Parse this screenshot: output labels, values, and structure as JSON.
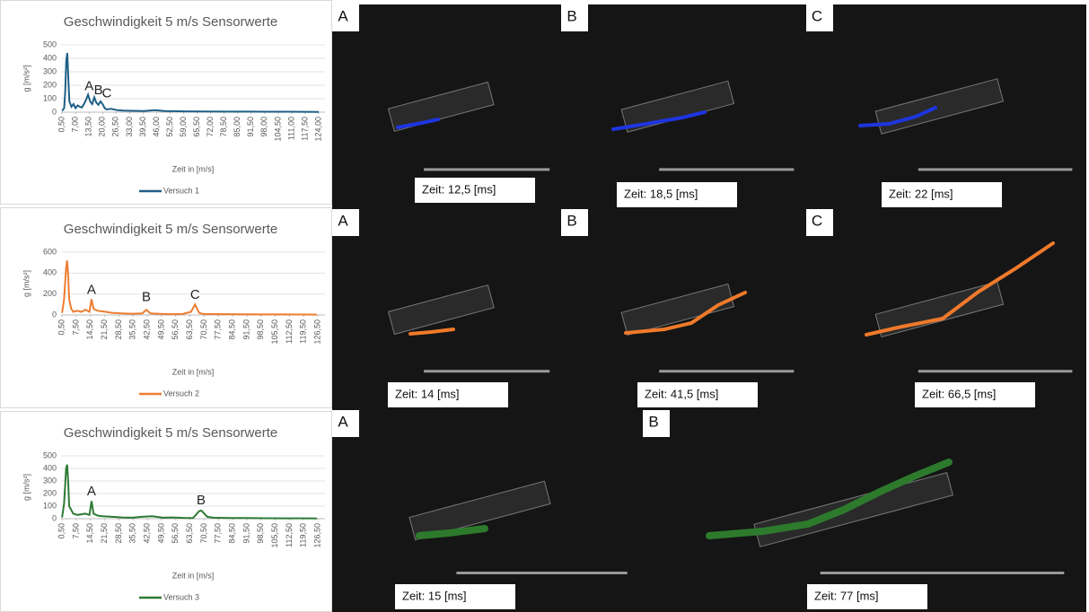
{
  "chart_data": [
    {
      "type": "line",
      "title": "Geschwindigkeit 5 m/s Sensorwerte",
      "x_label": "Zeit in [m/s]",
      "y_label": "g [m/s²]",
      "x": [
        0.5,
        1.5,
        2,
        2.5,
        3,
        3.5,
        4,
        5,
        6,
        7,
        8,
        9,
        10,
        11,
        12,
        13,
        14,
        15,
        16,
        17,
        18,
        19,
        20,
        21,
        22,
        24,
        27,
        30,
        35,
        40,
        45,
        50,
        60,
        70,
        80,
        90,
        100,
        110,
        124
      ],
      "series": [
        {
          "name": "Versuch 1",
          "color": "#1f5f86",
          "values": [
            10,
            30,
            150,
            380,
            440,
            250,
            80,
            40,
            60,
            30,
            50,
            40,
            35,
            60,
            90,
            130,
            80,
            60,
            110,
            70,
            55,
            80,
            60,
            30,
            20,
            25,
            15,
            12,
            10,
            8,
            15,
            8,
            6,
            5,
            4,
            4,
            3,
            3,
            2
          ]
        }
      ],
      "xlim": [
        0,
        127
      ],
      "xticks": [
        {
          "value": 0.5,
          "label": "0,50"
        },
        {
          "value": 7,
          "label": "7,00"
        },
        {
          "value": 13.5,
          "label": "13,50"
        },
        {
          "value": 20,
          "label": "20,00"
        },
        {
          "value": 26.5,
          "label": "26,50"
        },
        {
          "value": 33,
          "label": "33,00"
        },
        {
          "value": 39.5,
          "label": "39,50"
        },
        {
          "value": 46,
          "label": "46,00"
        },
        {
          "value": 52.5,
          "label": "52,50"
        },
        {
          "value": 59,
          "label": "59,00"
        },
        {
          "value": 65.5,
          "label": "65,50"
        },
        {
          "value": 72,
          "label": "72,00"
        },
        {
          "value": 78.5,
          "label": "78,50"
        },
        {
          "value": 85,
          "label": "85,00"
        },
        {
          "value": 91.5,
          "label": "91,50"
        },
        {
          "value": 98,
          "label": "98,00"
        },
        {
          "value": 104.5,
          "label": "104,50"
        },
        {
          "value": 111,
          "label": "111,00"
        },
        {
          "value": 117.5,
          "label": "117,50"
        },
        {
          "value": 124,
          "label": "124,00"
        }
      ],
      "ylim": [
        0,
        500
      ],
      "yticks": [
        0,
        100,
        200,
        300,
        400,
        500
      ],
      "grid": true,
      "annotations": [
        {
          "text": "A",
          "x": 13.5,
          "y": 130
        },
        {
          "text": "B",
          "x": 18,
          "y": 100
        },
        {
          "text": "C",
          "x": 22,
          "y": 75
        }
      ]
    },
    {
      "type": "line",
      "title": "Geschwindigkeit 5 m/s Sensorwerte",
      "x_label": "Zeit in [m/s]",
      "y_label": "g [m/s²]",
      "x": [
        0.5,
        1.5,
        2.5,
        3,
        3.5,
        4,
        5,
        6,
        8,
        10,
        12,
        14,
        15,
        16,
        18,
        20,
        22,
        25,
        30,
        35,
        40,
        42,
        44,
        50,
        55,
        60,
        64,
        66,
        68,
        70,
        80,
        90,
        100,
        110,
        120,
        126
      ],
      "series": [
        {
          "name": "Versuch 2",
          "color": "#ed7d31",
          "values": [
            20,
            150,
            450,
            520,
            380,
            150,
            60,
            30,
            40,
            30,
            50,
            30,
            150,
            60,
            40,
            35,
            30,
            20,
            15,
            12,
            15,
            50,
            15,
            10,
            8,
            10,
            30,
            100,
            20,
            10,
            8,
            6,
            5,
            5,
            4,
            3
          ]
        }
      ],
      "xlim": [
        0,
        130
      ],
      "xticks": [
        {
          "value": 0.5,
          "label": "0,50"
        },
        {
          "value": 7.5,
          "label": "7,50"
        },
        {
          "value": 14.5,
          "label": "14,50"
        },
        {
          "value": 21.5,
          "label": "21,50"
        },
        {
          "value": 28.5,
          "label": "28,50"
        },
        {
          "value": 35.5,
          "label": "35,50"
        },
        {
          "value": 42.5,
          "label": "42,50"
        },
        {
          "value": 49.5,
          "label": "49,50"
        },
        {
          "value": 56.5,
          "label": "56,50"
        },
        {
          "value": 63.5,
          "label": "63,50"
        },
        {
          "value": 70.5,
          "label": "70,50"
        },
        {
          "value": 77.5,
          "label": "77,50"
        },
        {
          "value": 84.5,
          "label": "84,50"
        },
        {
          "value": 91.5,
          "label": "91,50"
        },
        {
          "value": 98.5,
          "label": "98,50"
        },
        {
          "value": 105.5,
          "label": "105,50"
        },
        {
          "value": 112.5,
          "label": "112,50"
        },
        {
          "value": 119.5,
          "label": "119,50"
        },
        {
          "value": 126.5,
          "label": "126,50"
        }
      ],
      "ylim": [
        0,
        600
      ],
      "yticks": [
        0,
        200,
        400,
        600
      ],
      "grid": true,
      "annotations": [
        {
          "text": "A",
          "x": 15,
          "y": 160
        },
        {
          "text": "B",
          "x": 42,
          "y": 90
        },
        {
          "text": "C",
          "x": 66,
          "y": 110
        }
      ]
    },
    {
      "type": "line",
      "title": "Geschwindigkeit 5 m/s Sensorwerte",
      "x_label": "Zeit in [m/s]",
      "y_label": "g [m/s²]",
      "x": [
        0.5,
        1.5,
        2.5,
        3,
        3.5,
        4,
        5,
        6,
        8,
        10,
        12,
        14,
        15,
        16,
        18,
        20,
        25,
        30,
        35,
        40,
        45,
        50,
        55,
        60,
        65,
        68,
        69,
        70,
        72,
        75,
        80,
        90,
        100,
        110,
        120,
        126
      ],
      "series": [
        {
          "name": "Versuch 3",
          "color": "#2e7a34",
          "values": [
            10,
            120,
            400,
            430,
            300,
            100,
            70,
            40,
            30,
            35,
            40,
            30,
            140,
            40,
            25,
            20,
            15,
            10,
            8,
            15,
            20,
            8,
            10,
            6,
            5,
            60,
            65,
            50,
            15,
            8,
            6,
            5,
            4,
            3,
            3,
            2
          ]
        }
      ],
      "xlim": [
        0,
        130
      ],
      "xticks": [
        {
          "value": 0.5,
          "label": "0,50"
        },
        {
          "value": 7.5,
          "label": "7,50"
        },
        {
          "value": 14.5,
          "label": "14,50"
        },
        {
          "value": 21.5,
          "label": "21,50"
        },
        {
          "value": 28.5,
          "label": "28,50"
        },
        {
          "value": 35.5,
          "label": "35,50"
        },
        {
          "value": 42.5,
          "label": "42,50"
        },
        {
          "value": 49.5,
          "label": "49,50"
        },
        {
          "value": 56.5,
          "label": "56,50"
        },
        {
          "value": 63.5,
          "label": "63,50"
        },
        {
          "value": 70.5,
          "label": "70,50"
        },
        {
          "value": 77.5,
          "label": "77,50"
        },
        {
          "value": 84.5,
          "label": "84,50"
        },
        {
          "value": 91.5,
          "label": "91,50"
        },
        {
          "value": 98.5,
          "label": "98,50"
        },
        {
          "value": 105.5,
          "label": "105,50"
        },
        {
          "value": 112.5,
          "label": "112,50"
        },
        {
          "value": 119.5,
          "label": "119,50"
        },
        {
          "value": 126.5,
          "label": "126,50"
        }
      ],
      "ylim": [
        0,
        500
      ],
      "yticks": [
        0,
        100,
        200,
        300,
        400,
        500
      ],
      "grid": true,
      "annotations": [
        {
          "text": "A",
          "x": 15,
          "y": 150
        },
        {
          "text": "B",
          "x": 69,
          "y": 80
        }
      ]
    }
  ],
  "panels": [
    {
      "letter": "A",
      "time": "Zeit: 12,5 [ms]"
    },
    {
      "letter": "B",
      "time": "Zeit: 18,5 [ms]"
    },
    {
      "letter": "C",
      "time": "Zeit: 22 [ms]"
    },
    {
      "letter": "A",
      "time": "Zeit: 14 [ms]"
    },
    {
      "letter": "B",
      "time": "Zeit: 41,5 [ms]"
    },
    {
      "letter": "C",
      "time": "Zeit: 66,5 [ms]"
    },
    {
      "letter": "A",
      "time": "Zeit: 15 [ms]"
    },
    {
      "letter": "B",
      "time": "Zeit: 77 [ms]"
    }
  ]
}
